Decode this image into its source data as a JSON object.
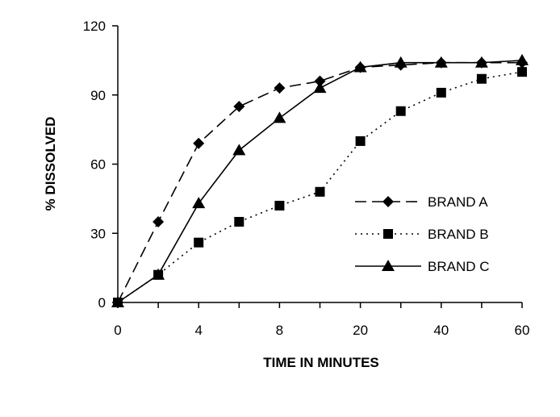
{
  "chart_data": {
    "type": "line",
    "title": "",
    "xlabel": "TIME IN MINUTES",
    "ylabel": "% DISSOLVED",
    "categories": [
      "0",
      "",
      "4",
      "",
      "8",
      "",
      "20",
      "",
      "40",
      "",
      "60"
    ],
    "x_tick_labels": [
      "0",
      "4",
      "8",
      "20",
      "40",
      "60"
    ],
    "y_ticks": [
      "0",
      "30",
      "60",
      "90",
      "120"
    ],
    "ylim": [
      0,
      120
    ],
    "grid": false,
    "legend_position": "right-center",
    "series": [
      {
        "name": "BRAND A",
        "line": "dashed",
        "marker": "diamond",
        "values": [
          0,
          35,
          69,
          85,
          93,
          96,
          102,
          103,
          104,
          104,
          104
        ]
      },
      {
        "name": "BRAND B",
        "line": "dotted",
        "marker": "square",
        "values": [
          0,
          12,
          26,
          35,
          42,
          48,
          70,
          83,
          91,
          97,
          100
        ]
      },
      {
        "name": "BRAND C",
        "line": "solid",
        "marker": "triangle",
        "values": [
          0,
          12,
          43,
          66,
          80,
          93,
          102,
          104,
          104,
          104,
          105
        ]
      }
    ]
  }
}
